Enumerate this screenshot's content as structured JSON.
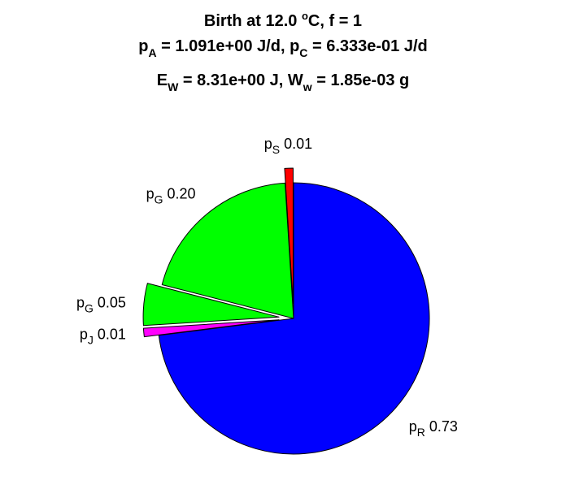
{
  "chart_data": {
    "type": "pie",
    "title": {
      "line1": {
        "prefix": "Birth at 12.0 ",
        "sup": "o",
        "suffix": "C, f = 1"
      },
      "line2": {
        "a_main": "p",
        "a_sub": "A",
        "a_rest": " = 1.091e+00 J/d, ",
        "c_main": "p",
        "c_sub": "C",
        "c_rest": " = 6.333e-01 J/d"
      },
      "line3": {
        "e_main": "E",
        "e_sub": "W",
        "e_rest": " = 8.31e+00 J, ",
        "w_main": "W",
        "w_sub": "w",
        "w_rest": " = 1.85e-03 g"
      }
    },
    "slices": [
      {
        "main": "p",
        "sub": "R",
        "value": 0.73,
        "label_value": "0.73",
        "color": "#0000ff",
        "explode": false
      },
      {
        "main": "p",
        "sub": "J",
        "value": 0.01,
        "label_value": "0.01",
        "color": "#ff00ff",
        "explode": true
      },
      {
        "main": "p",
        "sub": "G",
        "value": 0.05,
        "label_value": "0.05",
        "color": "#00ff00",
        "explode": true
      },
      {
        "main": "p",
        "sub": "G",
        "value": 0.2,
        "label_value": "0.20",
        "color": "#00ff00",
        "explode": false
      },
      {
        "main": "p",
        "sub": "S",
        "value": 0.01,
        "label_value": "0.01",
        "color": "#ff0000",
        "explode": true
      }
    ]
  }
}
